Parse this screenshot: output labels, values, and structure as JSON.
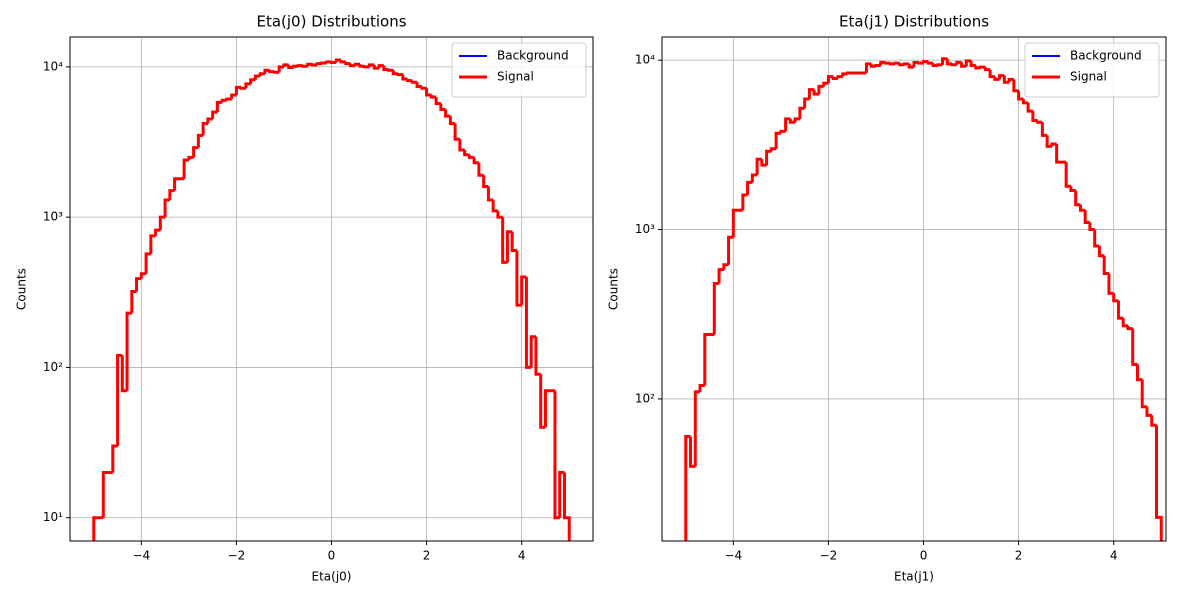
{
  "chart_data": [
    {
      "type": "histogram",
      "title": "Eta(j0) Distributions",
      "xlabel": "Eta(j0)",
      "ylabel": "Counts",
      "bins": [
        -5.0,
        -4.9,
        -4.8,
        -4.7,
        -4.6,
        -4.5,
        -4.4,
        -4.3,
        -4.2,
        -4.1,
        -4.0,
        -3.9,
        -3.8,
        -3.7,
        -3.6,
        -3.5,
        -3.4,
        -3.3,
        -3.2,
        -3.1,
        -3.0,
        -2.9,
        -2.8,
        -2.7,
        -2.6,
        -2.5,
        -2.4,
        -2.3,
        -2.2,
        -2.1,
        -2.0,
        -1.9,
        -1.8,
        -1.7,
        -1.6,
        -1.5,
        -1.4,
        -1.3,
        -1.2,
        -1.1,
        -1.0,
        -0.9,
        -0.8,
        -0.7,
        -0.6,
        -0.5,
        -0.4,
        -0.3,
        -0.2,
        -0.1,
        0.0,
        0.1,
        0.2,
        0.3,
        0.4,
        0.5,
        0.6,
        0.7,
        0.8,
        0.9,
        1.0,
        1.1,
        1.2,
        1.3,
        1.4,
        1.5,
        1.6,
        1.7,
        1.8,
        1.9,
        2.0,
        2.1,
        2.2,
        2.3,
        2.4,
        2.5,
        2.6,
        2.7,
        2.8,
        2.9,
        3.0,
        3.1,
        3.2,
        3.3,
        3.4,
        3.5,
        3.6,
        3.7,
        3.8,
        3.9,
        4.0,
        4.1,
        4.2,
        4.3,
        4.4,
        4.5,
        4.6,
        4.7,
        4.8,
        4.9,
        5.0
      ],
      "series": [
        {
          "name": "Background",
          "color": "#0000ff",
          "values": [
            10,
            10,
            20,
            20,
            30,
            120,
            70,
            230,
            320,
            390,
            420,
            570,
            750,
            820,
            1000,
            1300,
            1500,
            1800,
            1800,
            2400,
            2500,
            2900,
            3500,
            4200,
            4500,
            5000,
            5800,
            6000,
            6100,
            6500,
            7300,
            7200,
            7700,
            8200,
            8700,
            9000,
            9500,
            9300,
            9200,
            10000,
            10300,
            9900,
            10100,
            10200,
            10100,
            10400,
            10300,
            10500,
            10600,
            10800,
            10700,
            11100,
            10800,
            10500,
            10200,
            10400,
            10100,
            10000,
            10300,
            9800,
            10200,
            9600,
            9500,
            9000,
            8900,
            8300,
            8100,
            7900,
            7400,
            7200,
            6500,
            6300,
            5700,
            5200,
            4700,
            4200,
            3300,
            2800,
            2600,
            2500,
            2300,
            1900,
            1600,
            1300,
            1100,
            1000,
            500,
            800,
            600,
            260,
            400,
            100,
            160,
            90,
            40,
            70,
            70,
            10,
            20,
            10
          ]
        },
        {
          "name": "Signal",
          "color": "#ff0000",
          "values": [
            10,
            10,
            20,
            20,
            30,
            120,
            70,
            230,
            320,
            390,
            420,
            570,
            750,
            820,
            1000,
            1300,
            1500,
            1800,
            1800,
            2400,
            2500,
            2900,
            3500,
            4200,
            4500,
            5000,
            5800,
            6000,
            6100,
            6500,
            7300,
            7200,
            7700,
            8200,
            8700,
            9000,
            9500,
            9300,
            9200,
            10000,
            10300,
            9900,
            10100,
            10200,
            10100,
            10400,
            10300,
            10500,
            10600,
            10800,
            10700,
            11100,
            10800,
            10500,
            10200,
            10400,
            10100,
            10000,
            10300,
            9800,
            10200,
            9600,
            9500,
            9000,
            8900,
            8300,
            8100,
            7900,
            7400,
            7200,
            6500,
            6300,
            5700,
            5200,
            4700,
            4200,
            3300,
            2800,
            2600,
            2500,
            2300,
            1900,
            1600,
            1300,
            1100,
            1000,
            500,
            800,
            600,
            260,
            400,
            100,
            160,
            90,
            40,
            70,
            70,
            10,
            20,
            10
          ]
        }
      ],
      "xlim": [
        -5.5,
        5.5
      ],
      "ylim": [
        7,
        15800
      ],
      "log_y": true,
      "grid": true,
      "legend": "upper right",
      "xticks": [
        {
          "value": -4,
          "label": "−4"
        },
        {
          "value": -2,
          "label": "−2"
        },
        0,
        2,
        4
      ],
      "yticks": [
        {
          "value": 10,
          "label": "10¹"
        },
        {
          "value": 100,
          "label": "10²"
        },
        {
          "value": 1000,
          "label": "10³"
        },
        {
          "value": 10000,
          "label": "10⁴"
        }
      ]
    },
    {
      "type": "histogram",
      "title": "Eta(j1) Distributions",
      "xlabel": "Eta(j1)",
      "ylabel": "Counts",
      "bins": [
        -5.0,
        -4.9,
        -4.8,
        -4.7,
        -4.6,
        -4.5,
        -4.4,
        -4.3,
        -4.2,
        -4.1,
        -4.0,
        -3.9,
        -3.8,
        -3.7,
        -3.6,
        -3.5,
        -3.4,
        -3.3,
        -3.2,
        -3.1,
        -3.0,
        -2.9,
        -2.8,
        -2.7,
        -2.6,
        -2.5,
        -2.4,
        -2.3,
        -2.2,
        -2.1,
        -2.0,
        -1.9,
        -1.8,
        -1.7,
        -1.6,
        -1.5,
        -1.4,
        -1.3,
        -1.2,
        -1.1,
        -1.0,
        -0.9,
        -0.8,
        -0.7,
        -0.6,
        -0.5,
        -0.4,
        -0.3,
        -0.2,
        -0.1,
        0.0,
        0.1,
        0.2,
        0.3,
        0.4,
        0.5,
        0.6,
        0.7,
        0.8,
        0.9,
        1.0,
        1.1,
        1.2,
        1.3,
        1.4,
        1.5,
        1.6,
        1.7,
        1.8,
        1.9,
        2.0,
        2.1,
        2.2,
        2.3,
        2.4,
        2.5,
        2.6,
        2.7,
        2.8,
        2.9,
        3.0,
        3.1,
        3.2,
        3.3,
        3.4,
        3.5,
        3.6,
        3.7,
        3.8,
        3.9,
        4.0,
        4.1,
        4.2,
        4.3,
        4.4,
        4.5,
        4.6,
        4.7,
        4.8,
        4.9,
        5.0
      ],
      "series": [
        {
          "name": "Background",
          "color": "#0000ff",
          "values": [
            60,
            40,
            110,
            120,
            240,
            240,
            480,
            580,
            620,
            900,
            1300,
            1300,
            1600,
            1900,
            2100,
            2600,
            2400,
            2900,
            3000,
            3700,
            3800,
            4500,
            4300,
            4500,
            5200,
            5900,
            6700,
            6300,
            7000,
            7300,
            8000,
            7800,
            8000,
            8300,
            8400,
            8400,
            8400,
            8400,
            9500,
            9200,
            9300,
            9700,
            9600,
            9500,
            9600,
            9400,
            9500,
            9100,
            9700,
            9600,
            9800,
            9600,
            9300,
            9400,
            10200,
            9500,
            9400,
            9700,
            9200,
            9900,
            9300,
            9000,
            9100,
            8800,
            8000,
            7700,
            8100,
            7400,
            7700,
            6600,
            5900,
            5600,
            5000,
            4400,
            4300,
            3600,
            3100,
            3200,
            2500,
            2500,
            1800,
            1700,
            1400,
            1300,
            1100,
            1000,
            800,
            700,
            550,
            420,
            380,
            300,
            270,
            260,
            160,
            130,
            90,
            80,
            70,
            20
          ]
        },
        {
          "name": "Signal",
          "color": "#ff0000",
          "values": [
            60,
            40,
            110,
            120,
            240,
            240,
            480,
            580,
            620,
            900,
            1300,
            1300,
            1600,
            1900,
            2100,
            2600,
            2400,
            2900,
            3000,
            3700,
            3800,
            4500,
            4300,
            4500,
            5200,
            5900,
            6700,
            6300,
            7000,
            7300,
            8000,
            7800,
            8000,
            8300,
            8400,
            8400,
            8400,
            8400,
            9500,
            9200,
            9300,
            9700,
            9600,
            9500,
            9600,
            9400,
            9500,
            9100,
            9700,
            9600,
            9800,
            9600,
            9300,
            9400,
            10200,
            9500,
            9400,
            9700,
            9200,
            9900,
            9300,
            9000,
            9100,
            8800,
            8000,
            7700,
            8100,
            7400,
            7700,
            6600,
            5900,
            5600,
            5000,
            4400,
            4300,
            3600,
            3100,
            3200,
            2500,
            2500,
            1800,
            1700,
            1400,
            1300,
            1100,
            1000,
            800,
            700,
            550,
            420,
            380,
            300,
            270,
            260,
            160,
            130,
            90,
            80,
            70,
            20
          ]
        }
      ],
      "xlim": [
        -5.5,
        5.1
      ],
      "ylim": [
        14.5,
        13700
      ],
      "log_y": true,
      "grid": true,
      "legend": "upper right",
      "xticks": [
        {
          "value": -4,
          "label": "−4"
        },
        {
          "value": -2,
          "label": "−2"
        },
        0,
        2,
        4
      ],
      "yticks": [
        {
          "value": 100,
          "label": "10²"
        },
        {
          "value": 1000,
          "label": "10³"
        },
        {
          "value": 10000,
          "label": "10⁴"
        }
      ]
    }
  ]
}
